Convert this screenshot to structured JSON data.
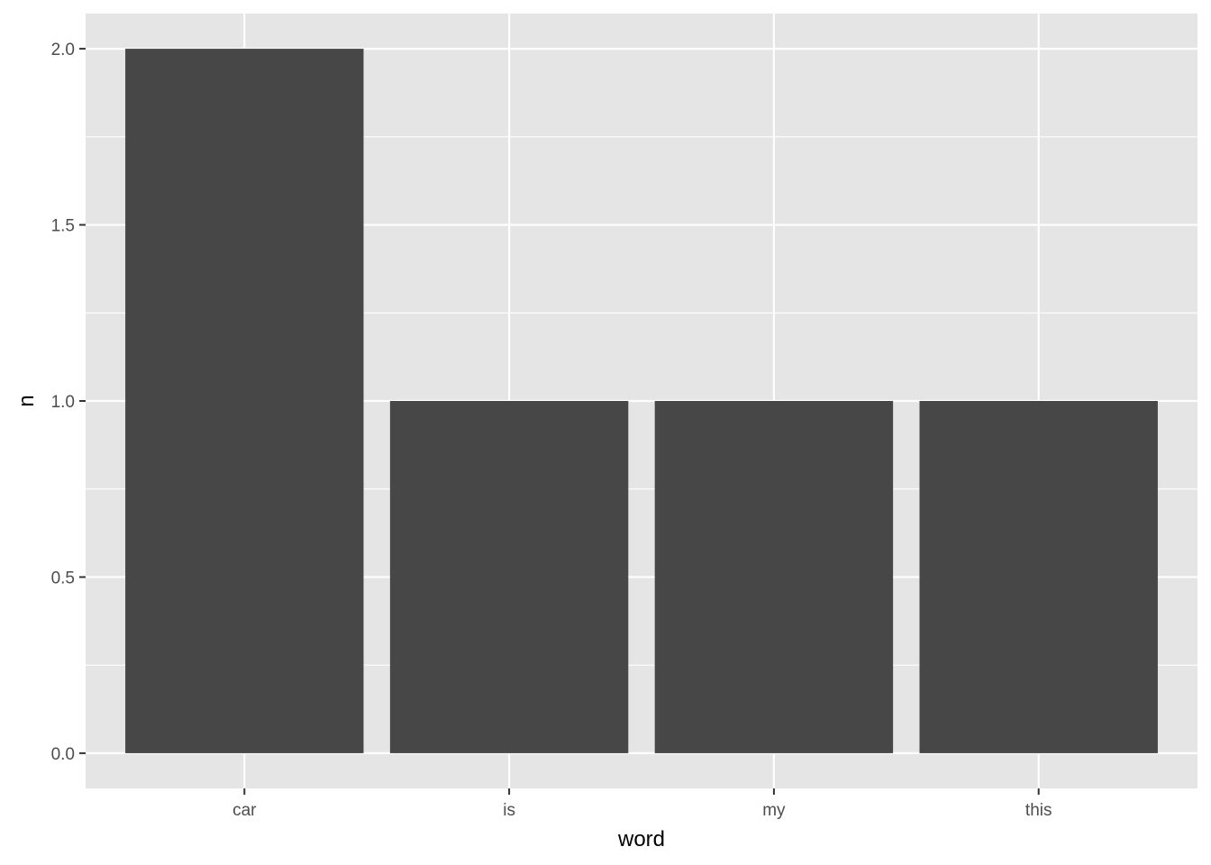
{
  "chart_data": {
    "type": "bar",
    "categories": [
      "car",
      "is",
      "my",
      "this"
    ],
    "values": [
      2,
      1,
      1,
      1
    ],
    "title": "",
    "xlabel": "word",
    "ylabel": "n",
    "ylim": [
      -0.1,
      2.1
    ],
    "yticks": [
      "0.0",
      "0.5",
      "1.0",
      "1.5",
      "2.0"
    ],
    "ytick_values": [
      0,
      0.5,
      1,
      1.5,
      2
    ],
    "grid": true,
    "legend": "none",
    "colors": {
      "bar": "#474747",
      "panel": "#e5e5e5",
      "grid": "#ffffff"
    }
  }
}
